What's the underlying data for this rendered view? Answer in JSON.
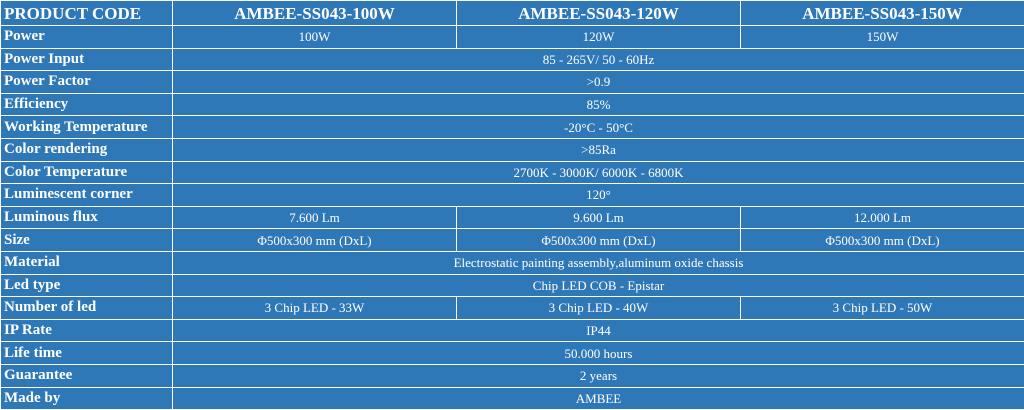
{
  "table": {
    "header": [
      "PRODUCT CODE",
      "AMBEE-SS043-100W",
      "AMBEE-SS043-120W",
      "AMBEE-SS043-150W"
    ],
    "rows": [
      [
        "Power",
        "100W",
        "120W",
        "150W"
      ],
      [
        "Power Input",
        "85 - 265V/ 50 - 60Hz"
      ],
      [
        "Power Factor",
        ">0.9"
      ],
      [
        "Efficiency",
        "85%"
      ],
      [
        "Working Temperature",
        "-20°C - 50°C"
      ],
      [
        "Color rendering",
        ">85Ra"
      ],
      [
        "Color Temperature",
        "2700K - 3000K/ 6000K - 6800K"
      ],
      [
        "Luminescent corner",
        "120°"
      ],
      [
        "Luminous flux",
        "7.600 Lm",
        "9.600 Lm",
        "12.000 Lm"
      ],
      [
        "Size",
        "Φ500x300 mm (DxL)",
        "Φ500x300 mm (DxL)",
        "Φ500x300 mm (DxL)"
      ],
      [
        "Material",
        "Electrostatic painting assembly,aluminum oxide chassis"
      ],
      [
        "Led type",
        "Chip LED COB -  Epistar"
      ],
      [
        "Number of led",
        "3 Chip LED - 33W",
        "3 Chip LED - 40W",
        "3 Chip LED - 50W"
      ],
      [
        "IP Rate",
        "IP44"
      ],
      [
        "Life time",
        "50.000 hours"
      ],
      [
        "Guarantee",
        "2 years"
      ],
      [
        "Made by",
        "AMBEE"
      ]
    ]
  }
}
